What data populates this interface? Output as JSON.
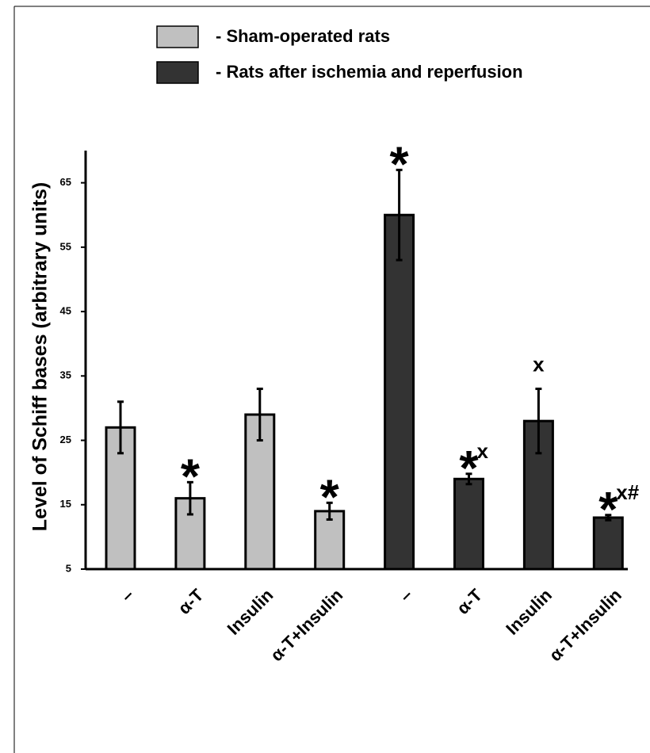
{
  "chart_data": {
    "type": "bar",
    "y_label": "Level of Schiff bases (arbitrary units)",
    "categories": [
      "–",
      "α-T",
      "Insulin",
      "α-T+Insulin",
      "–",
      "α-T",
      "Insulin",
      "α-T+Insulin"
    ],
    "series": [
      {
        "name": "- Sham-operated rats",
        "color": "#c0c0c0",
        "values": [
          27,
          16,
          29,
          14,
          null,
          null,
          null,
          null
        ],
        "errors": [
          4,
          2.5,
          4,
          1.3,
          null,
          null,
          null,
          null
        ],
        "stars": [
          null,
          "*",
          null,
          "*",
          null,
          null,
          null,
          null
        ],
        "letters": [
          null,
          null,
          null,
          null,
          null,
          null,
          null,
          null
        ]
      },
      {
        "name": "- Rats after ischemia and reperfusion",
        "color": "#333333",
        "values": [
          null,
          null,
          null,
          null,
          60,
          19,
          28,
          13
        ],
        "errors": [
          null,
          null,
          null,
          null,
          7,
          0.8,
          5,
          0.4
        ],
        "stars": [
          null,
          null,
          null,
          null,
          "*",
          "*",
          null,
          "*"
        ],
        "letters": [
          null,
          null,
          null,
          null,
          null,
          "x",
          "x",
          "x#"
        ]
      }
    ],
    "ylim": [
      5,
      70
    ],
    "yticks": [
      5,
      15,
      25,
      35,
      45,
      55,
      65
    ]
  }
}
